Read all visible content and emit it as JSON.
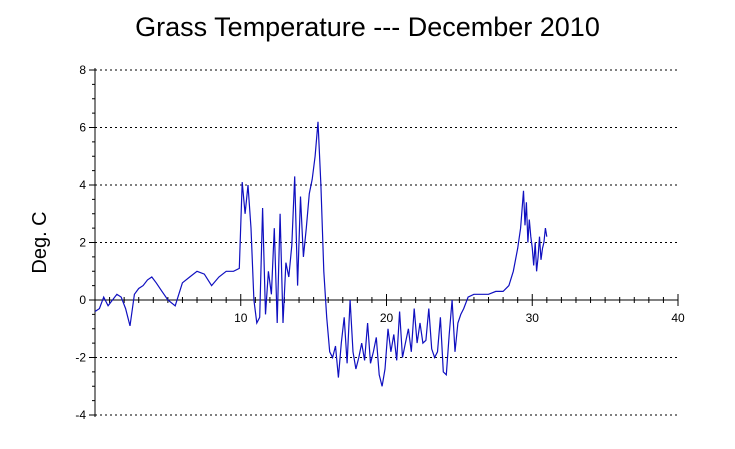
{
  "chart_data": {
    "type": "line",
    "title": "Grass Temperature --- December 2010",
    "xlabel": "",
    "ylabel": "Deg. C",
    "xlim": [
      0,
      40
    ],
    "ylim": [
      -4,
      8
    ],
    "x_ticks": [
      10,
      20,
      30,
      40
    ],
    "y_ticks": [
      -4,
      -2,
      0,
      2,
      4,
      6,
      8
    ],
    "x_tick_labels": [
      "10",
      "20",
      "30",
      "40"
    ],
    "y_tick_labels": [
      "-4",
      "-2",
      "0",
      "2",
      "4",
      "6",
      "8"
    ],
    "grid": "horizontal-dotted",
    "legend": "none",
    "colors": {
      "line": "#1010c0",
      "axis": "#000000",
      "grid": "#000000"
    },
    "series": [
      {
        "values_x": [
          0,
          0.3,
          0.6,
          0.9,
          1.2,
          1.5,
          1.8,
          2.1,
          2.4,
          2.7,
          3.0,
          3.3,
          3.6,
          3.9,
          4.2,
          4.6,
          5.0,
          5.5,
          6.0,
          6.5,
          7.0,
          7.5,
          8.0,
          8.5,
          9.0,
          9.5,
          9.9,
          10.1,
          10.3,
          10.5,
          10.7,
          10.9,
          11.1,
          11.3,
          11.5,
          11.7,
          11.9,
          12.1,
          12.3,
          12.5,
          12.7,
          12.9,
          13.1,
          13.3,
          13.5,
          13.7,
          13.9,
          14.1,
          14.3,
          14.5,
          14.7,
          14.9,
          15.1,
          15.3,
          15.5,
          15.7,
          15.9,
          16.1,
          16.3,
          16.5,
          16.7,
          16.9,
          17.1,
          17.3,
          17.5,
          17.7,
          17.9,
          18.1,
          18.3,
          18.5,
          18.7,
          18.9,
          19.1,
          19.3,
          19.5,
          19.7,
          19.9,
          20.1,
          20.3,
          20.5,
          20.7,
          20.9,
          21.1,
          21.3,
          21.5,
          21.7,
          21.9,
          22.1,
          22.3,
          22.5,
          22.7,
          22.9,
          23.1,
          23.3,
          23.5,
          23.7,
          23.9,
          24.1,
          24.3,
          24.5,
          24.7,
          24.9,
          25.1,
          25.3,
          25.6,
          26.0,
          26.5,
          27.0,
          27.5,
          28.0,
          28.4,
          28.7,
          29.0,
          29.2,
          29.4,
          29.5,
          29.6,
          29.7,
          29.8,
          29.9,
          30.0,
          30.1,
          30.2,
          30.3,
          30.4,
          30.5,
          30.6,
          30.7,
          30.8,
          30.9,
          31.0
        ],
        "values_y": [
          -0.4,
          -0.3,
          0.1,
          -0.2,
          0.0,
          0.2,
          0.1,
          -0.3,
          -0.9,
          0.2,
          0.4,
          0.5,
          0.7,
          0.8,
          0.6,
          0.3,
          0.0,
          -0.2,
          0.6,
          0.8,
          1.0,
          0.9,
          0.5,
          0.8,
          1.0,
          1.0,
          1.1,
          4.1,
          3.0,
          4.0,
          2.5,
          0.0,
          -0.8,
          -0.6,
          3.2,
          -0.5,
          1.0,
          0.2,
          2.5,
          -0.8,
          3.0,
          -0.8,
          1.3,
          0.8,
          1.9,
          4.3,
          0.5,
          3.6,
          1.5,
          2.5,
          3.7,
          4.2,
          5.0,
          6.2,
          4.0,
          1.0,
          -0.6,
          -1.8,
          -2.0,
          -1.6,
          -2.7,
          -1.5,
          -0.6,
          -2.2,
          0.0,
          -1.8,
          -2.4,
          -2.0,
          -1.5,
          -2.1,
          -0.8,
          -2.2,
          -1.8,
          -1.3,
          -2.6,
          -3.0,
          -2.4,
          -1.0,
          -1.8,
          -1.2,
          -2.1,
          -0.4,
          -2.0,
          -1.5,
          -1.0,
          -1.8,
          -0.3,
          -1.5,
          -0.8,
          -1.5,
          -1.4,
          -0.3,
          -1.7,
          -2.0,
          -1.8,
          -0.6,
          -2.5,
          -2.6,
          -1.2,
          0.0,
          -1.8,
          -0.8,
          -0.5,
          -0.3,
          0.1,
          0.2,
          0.2,
          0.2,
          0.3,
          0.3,
          0.5,
          1.0,
          1.8,
          2.5,
          3.8,
          2.6,
          3.4,
          2.0,
          2.8,
          2.2,
          1.8,
          1.2,
          2.0,
          1.0,
          1.5,
          2.2,
          1.4,
          1.8,
          2.0,
          2.5,
          2.2
        ]
      }
    ]
  }
}
